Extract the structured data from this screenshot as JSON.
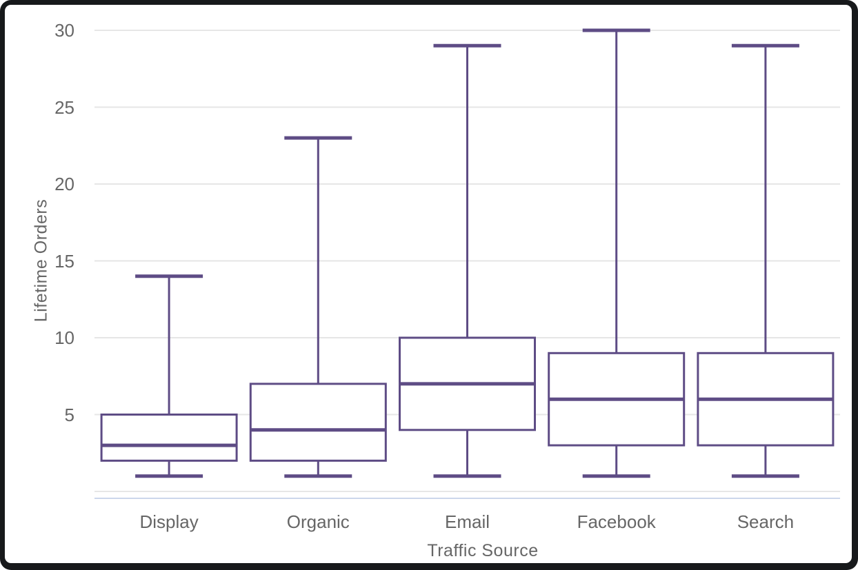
{
  "chart_data": {
    "type": "boxplot",
    "title": "",
    "xlabel": "Traffic Source",
    "ylabel": "Lifetime Orders",
    "categories": [
      "Display",
      "Organic",
      "Email",
      "Facebook",
      "Search"
    ],
    "boxes": [
      {
        "category": "Display",
        "low": 1,
        "q1": 2,
        "median": 3,
        "q3": 5,
        "high": 14
      },
      {
        "category": "Organic",
        "low": 1,
        "q1": 2,
        "median": 4,
        "q3": 7,
        "high": 23
      },
      {
        "category": "Email",
        "low": 1,
        "q1": 4,
        "median": 7,
        "q3": 10,
        "high": 29
      },
      {
        "category": "Facebook",
        "low": 1,
        "q1": 3,
        "median": 6,
        "q3": 9,
        "high": 30
      },
      {
        "category": "Search",
        "low": 1,
        "q1": 3,
        "median": 6,
        "q3": 9,
        "high": 29
      }
    ],
    "yticks": [
      5,
      10,
      15,
      20,
      25,
      30
    ],
    "ylim": [
      0,
      30
    ],
    "ytick_interval": 5,
    "grid": true,
    "legend": false
  },
  "colors": {
    "box_stroke": "#5E4C85",
    "box_fill": "#ffffff",
    "gridline": "#e6e6e6",
    "axis_line": "#ccd6eb",
    "label_text": "#666666",
    "frame": "#17191b",
    "background": "#ffffff"
  }
}
